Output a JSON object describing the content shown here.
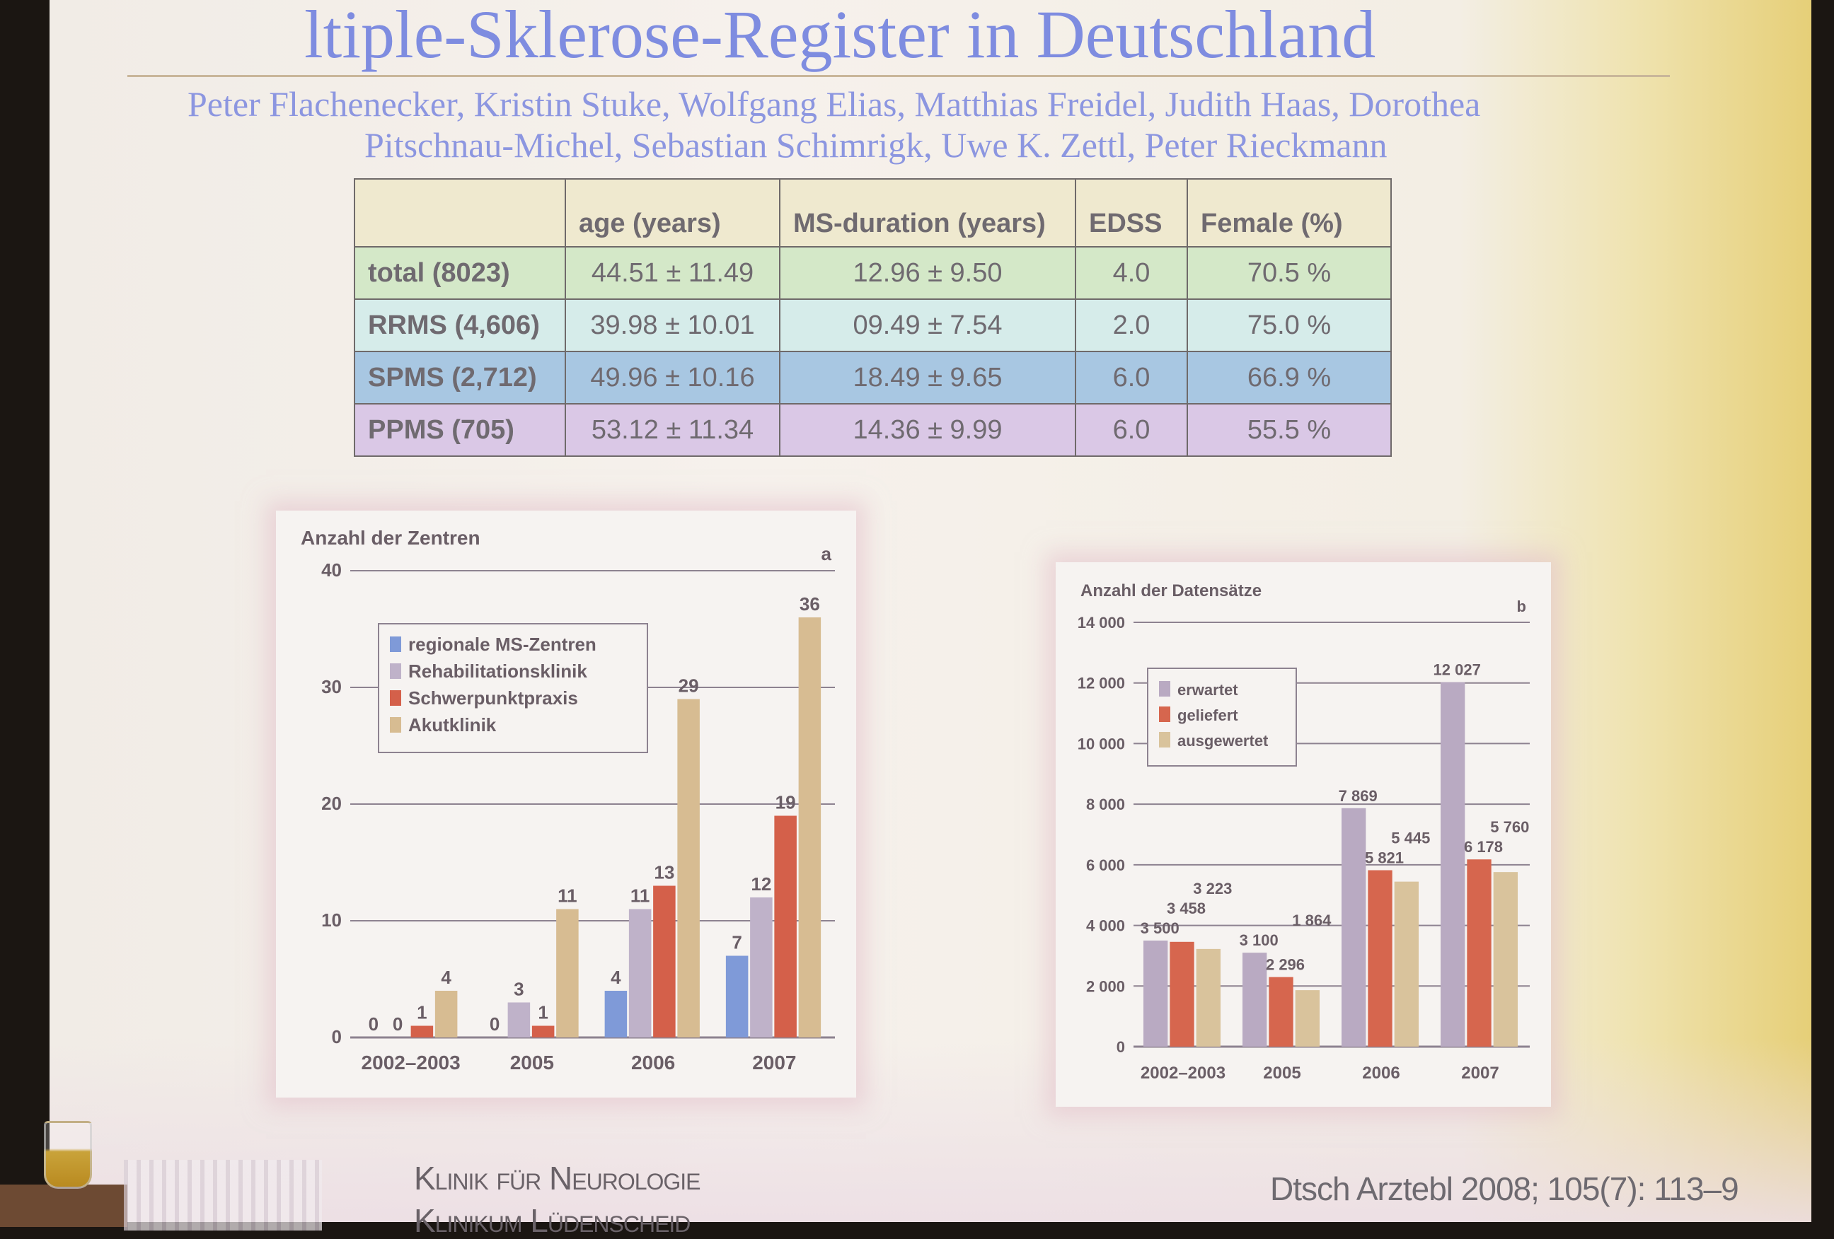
{
  "slide": {
    "title": "ltiple-Sklerose-Register in Deutschland",
    "authors": [
      "Peter Flachenecker, Kristin Stuke, Wolfgang Elias, Matthias Freidel, Judith Haas, Dorothea",
      "Pitschnau-Michel, Sebastian Schimrigk, Uwe K. Zettl, Peter Rieckmann"
    ],
    "footer_institution": "Klinik für Neurologie",
    "footer_institution_2": "Klinikum Lüdenscheid",
    "citation": "Dtsch Arztebl 2008; 105(7): 113–9"
  },
  "table": {
    "headers": [
      "",
      "age (years)",
      "MS-duration (years)",
      "EDSS",
      "Female (%)"
    ],
    "rows": [
      [
        "total (8023)",
        "44.51 ± 11.49",
        "12.96 ± 9.50",
        "4.0",
        "70.5 %"
      ],
      [
        "RRMS (4,606)",
        "39.98 ± 10.01",
        "09.49 ± 7.54",
        "2.0",
        "75.0 %"
      ],
      [
        "SPMS (2,712)",
        "49.96 ± 10.16",
        "18.49 ± 9.65",
        "6.0",
        "66.9 %"
      ],
      [
        "PPMS   (705)",
        "53.12 ± 11.34",
        "14.36 ± 9.99",
        "6.0",
        "55.5 %"
      ]
    ],
    "row_colors": [
      "#d4e8c8",
      "#d6ecea",
      "#a8c7e2",
      "#dac8e6"
    ]
  },
  "chart_data": [
    {
      "type": "bar",
      "panel_label": "a",
      "ylabel": "Anzahl der Zentren",
      "categories": [
        "2002–2003",
        "2005",
        "2006",
        "2007"
      ],
      "ylim": [
        0,
        40
      ],
      "yticks": [
        0,
        10,
        20,
        30,
        40
      ],
      "ytick_labels": [
        "0",
        "10",
        "20",
        "30",
        "40"
      ],
      "grid": true,
      "legend_placement": "top-left",
      "series": [
        {
          "name": "regionale MS-Zentren",
          "color": "#7f9ad8",
          "values": [
            0,
            0,
            4,
            7
          ]
        },
        {
          "name": "Rehabilitationsklinik",
          "color": "#bfb2c9",
          "values": [
            0,
            3,
            11,
            12
          ]
        },
        {
          "name": "Schwerpunktpraxis",
          "color": "#d4604a",
          "values": [
            1,
            1,
            13,
            19
          ]
        },
        {
          "name": "Akutklinik",
          "color": "#d7bc92",
          "values": [
            4,
            11,
            29,
            36
          ]
        }
      ]
    },
    {
      "type": "bar",
      "panel_label": "b",
      "ylabel": "Anzahl der Datensätze",
      "categories": [
        "2002–2003",
        "2005",
        "2006",
        "2007"
      ],
      "ylim": [
        0,
        14000
      ],
      "yticks": [
        0,
        2000,
        4000,
        6000,
        8000,
        10000,
        12000,
        14000
      ],
      "ytick_labels": [
        "0",
        "2 000",
        "4 000",
        "6 000",
        "8 000",
        "10 000",
        "12 000",
        "14 000"
      ],
      "grid": true,
      "legend_placement": "top-left",
      "series": [
        {
          "name": "erwartet",
          "color": "#b9aac2",
          "values": [
            3500,
            3100,
            7869,
            12027
          ],
          "labels": [
            "3 500",
            "3 100",
            "7 869",
            "12 027"
          ]
        },
        {
          "name": "geliefert",
          "color": "#d6664e",
          "values": [
            3458,
            2296,
            5821,
            6178
          ],
          "labels": [
            "3 458",
            "2 296",
            "5 821",
            "6 178"
          ]
        },
        {
          "name": "ausgewertet",
          "color": "#d9c39c",
          "values": [
            3223,
            1864,
            5445,
            5760
          ],
          "labels": [
            "3 223",
            "1 864",
            "5 445",
            "5 760"
          ]
        }
      ]
    }
  ]
}
